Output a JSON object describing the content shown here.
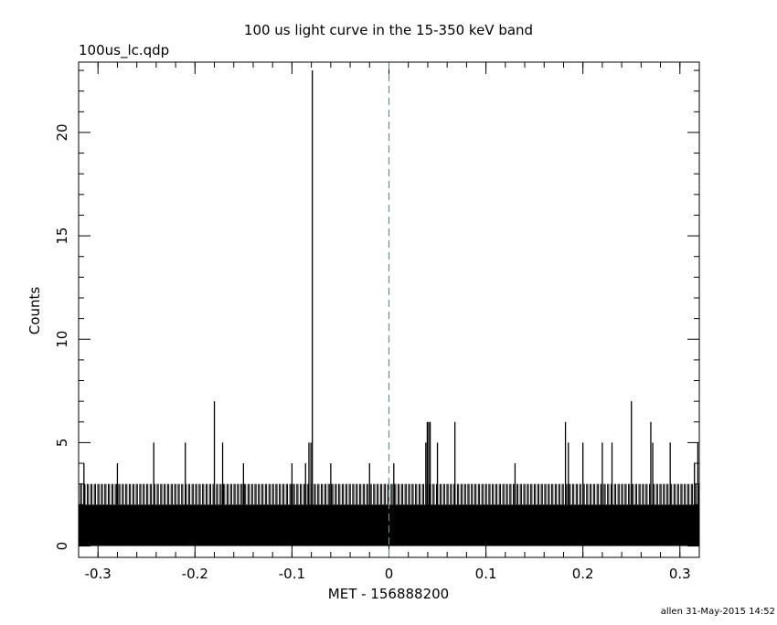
{
  "chart_data": {
    "type": "bar",
    "title": "100 us light curve in the 15-350 keV band",
    "subtitle": "100us_lc.qdp",
    "xlabel": "MET - 156888200",
    "ylabel": "Counts",
    "footer": "allen 31-May-2015 14:52",
    "xlim": [
      -0.32,
      0.32
    ],
    "ylim": [
      -0.55,
      23.4
    ],
    "x_ticks": [
      -0.3,
      -0.2,
      -0.1,
      0,
      0.1,
      0.2,
      0.3
    ],
    "x_tick_labels": [
      "-0.3",
      "-0.2",
      "-0.1",
      "0",
      "0.1",
      "0.2",
      "0.3"
    ],
    "y_ticks": [
      0,
      5,
      10,
      15,
      20
    ],
    "y_tick_labels": [
      "0",
      "5",
      "10",
      "15",
      "20"
    ],
    "bin_width": 0.0001,
    "baseline_level": 2,
    "grid": false,
    "colors": {
      "bars": "#000000",
      "marker_line": "#2aa7a7",
      "axes": "#000000"
    },
    "marker_line_x": 0,
    "spikes": {
      "x": [
        -0.3145,
        -0.28,
        -0.2425,
        -0.21,
        -0.18,
        -0.1715,
        -0.15,
        -0.1,
        -0.086,
        -0.0825,
        -0.0805,
        -0.079,
        -0.06,
        -0.02,
        0.005,
        0.038,
        0.0395,
        0.041,
        0.0425,
        0.05,
        0.068,
        0.13,
        0.182,
        0.185,
        0.2,
        0.22,
        0.23,
        0.25,
        0.27,
        0.272,
        0.29,
        0.315,
        0.3185
      ],
      "y": [
        4,
        4,
        5,
        5,
        7,
        5,
        4,
        4,
        4,
        5,
        5,
        23,
        4,
        4,
        4,
        5,
        6,
        6,
        6,
        5,
        6,
        4,
        6,
        5,
        5,
        5,
        5,
        7,
        6,
        5,
        5,
        4,
        5
      ]
    }
  }
}
